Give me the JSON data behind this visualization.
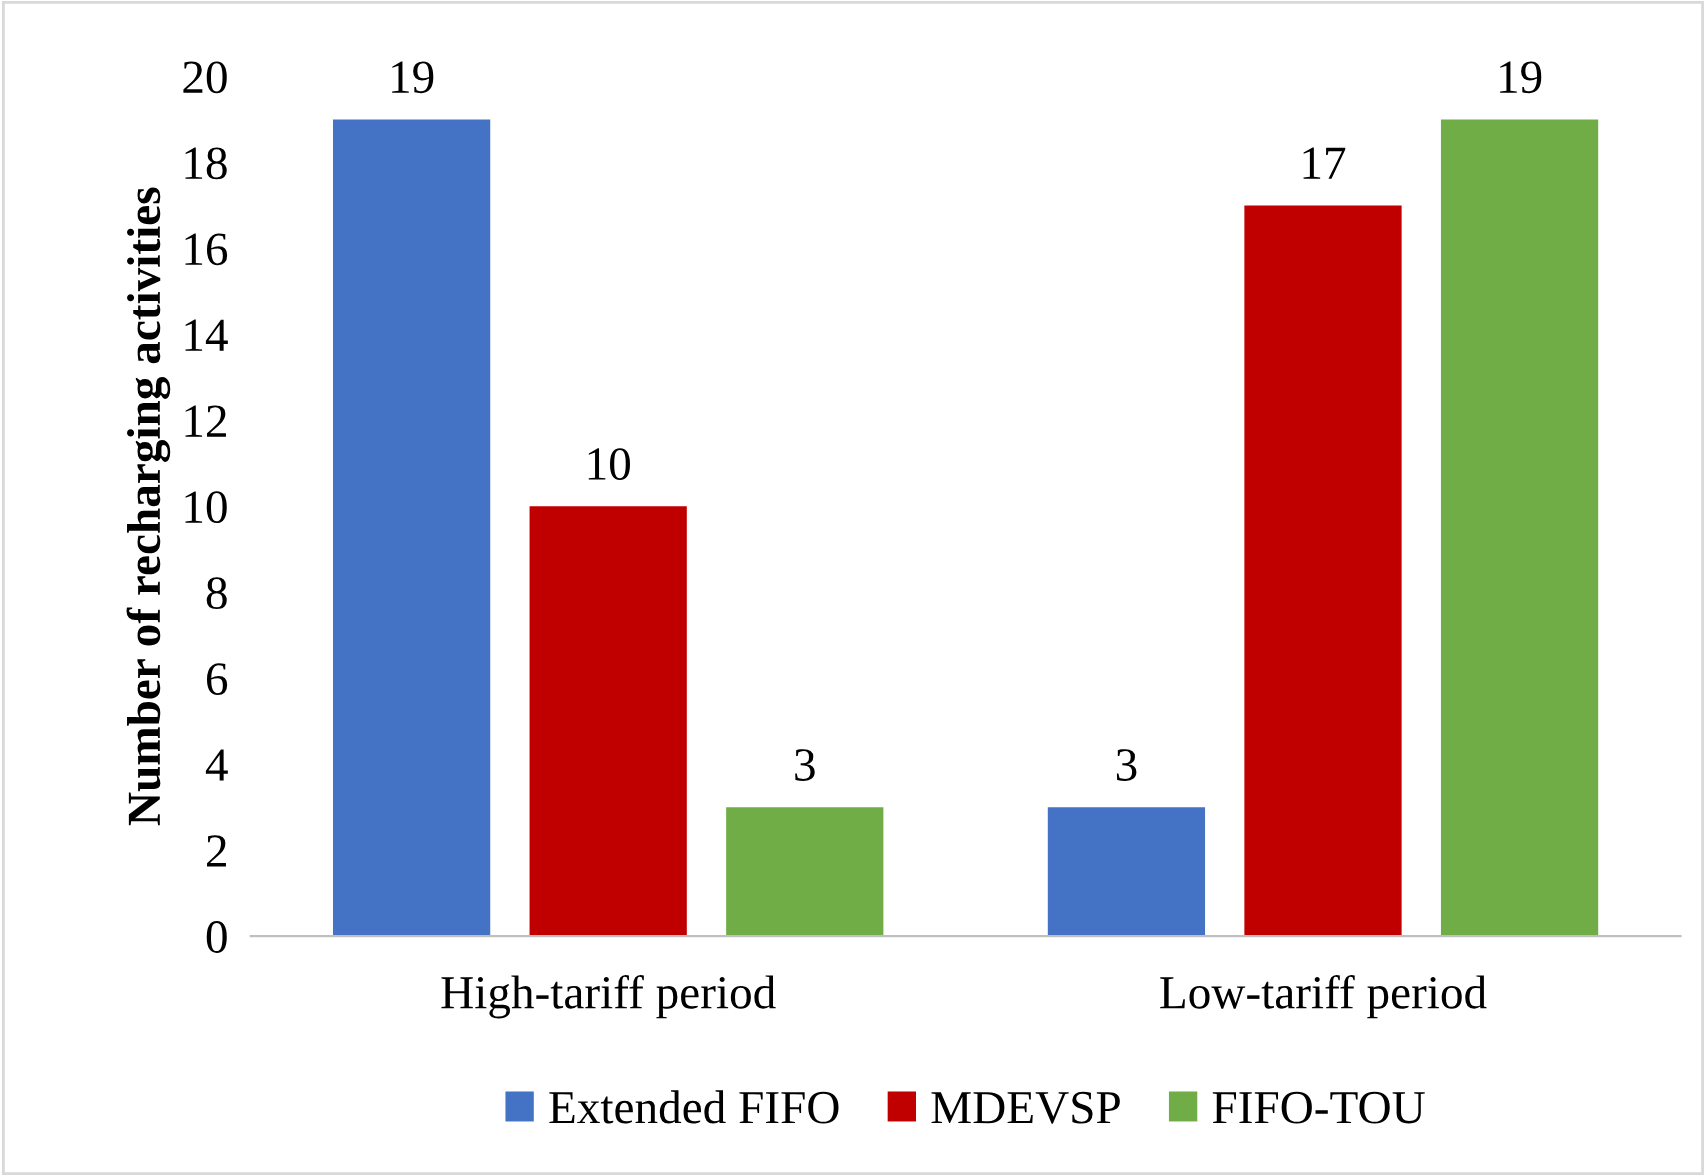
{
  "chart_data": {
    "type": "bar",
    "ylabel": "Number of recharging activities",
    "categories": [
      "High-tariff period",
      "Low-tariff period"
    ],
    "series": [
      {
        "name": "Extended FIFO",
        "color": "#4472c4",
        "values": [
          19,
          3
        ]
      },
      {
        "name": "MDEVSP",
        "color": "#c00000",
        "values": [
          10,
          17
        ]
      },
      {
        "name": "FIFO-TOU",
        "color": "#70ad47",
        "values": [
          3,
          19
        ]
      }
    ],
    "ylim": [
      0,
      20
    ],
    "yticks": [
      0,
      2,
      4,
      6,
      8,
      10,
      12,
      14,
      16,
      18,
      20
    ],
    "grid": false,
    "legend": "bottom",
    "data_labels": true
  }
}
